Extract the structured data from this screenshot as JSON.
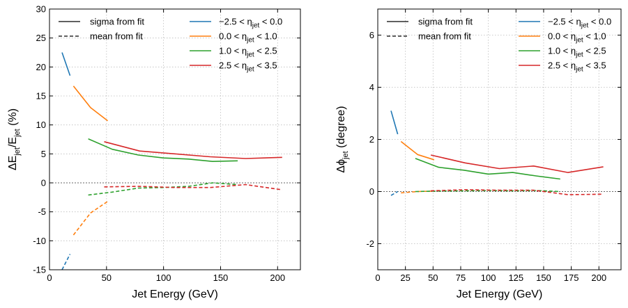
{
  "colors": {
    "eta1": "#1f77b4",
    "eta2": "#ff7f0e",
    "eta3": "#2ca02c",
    "eta4": "#d62728",
    "grid": "#bbbbbb",
    "zero_line": "#666666"
  },
  "chart_data": [
    {
      "type": "line",
      "title": "",
      "xlabel": "Jet Energy (GeV)",
      "ylabel": "ΔEjet/Ejet (%)",
      "ylabel_parts": {
        "main": "ΔE",
        "sub1": "jet",
        "mid": "/E",
        "sub2": "jet",
        "unit": " (%)"
      },
      "xlim": [
        0,
        220
      ],
      "ylim": [
        -15,
        30
      ],
      "xticks": [
        0,
        50,
        100,
        150,
        200
      ],
      "yticks": [
        -15,
        -10,
        -5,
        0,
        5,
        10,
        15,
        20,
        25,
        30
      ],
      "grid": true,
      "zero_line": true,
      "legend_styles": [
        {
          "label": "sigma from fit",
          "dash": "solid"
        },
        {
          "label": "mean from fit",
          "dash": "dashed"
        }
      ],
      "legend_location": "top-right",
      "series": [
        {
          "name": "−2.5 < ηjet < 0.0",
          "color_key": "eta1",
          "sigma": {
            "x": [
              11,
              18
            ],
            "y": [
              22.5,
              18.5
            ]
          },
          "mean": {
            "x": [
              11,
              18
            ],
            "y": [
              -15.0,
              -12.3
            ]
          }
        },
        {
          "name": "0.0 < ηjet < 1.0",
          "color_key": "eta2",
          "sigma": {
            "x": [
              21,
              36,
              51
            ],
            "y": [
              16.7,
              13.0,
              10.7
            ]
          },
          "mean": {
            "x": [
              21,
              36,
              51
            ],
            "y": [
              -9.0,
              -5.2,
              -3.2
            ]
          }
        },
        {
          "name": "1.0 < ηjet < 2.5",
          "color_key": "eta3",
          "sigma": {
            "x": [
              34,
              55,
              78,
              100,
              122,
              143,
              165
            ],
            "y": [
              7.6,
              5.8,
              4.8,
              4.3,
              4.1,
              3.7,
              3.8
            ]
          },
          "mean": {
            "x": [
              34,
              55,
              78,
              100,
              122,
              143,
              165
            ],
            "y": [
              -2.1,
              -1.6,
              -0.9,
              -0.8,
              -0.6,
              0.0,
              -0.3
            ]
          }
        },
        {
          "name": "2.5 < ηjet < 3.5",
          "color_key": "eta4",
          "sigma": {
            "x": [
              48,
              79,
              110,
              141,
              172,
              204
            ],
            "y": [
              7.1,
              5.5,
              5.0,
              4.5,
              4.2,
              4.4
            ]
          },
          "mean": {
            "x": [
              48,
              79,
              110,
              141,
              172,
              204
            ],
            "y": [
              -0.7,
              -0.6,
              -0.8,
              -0.8,
              -0.3,
              -1.2
            ]
          }
        }
      ]
    },
    {
      "type": "line",
      "title": "",
      "xlabel": "Jet Energy (GeV)",
      "ylabel": "Δϕjet (degree)",
      "ylabel_parts": {
        "main": "Δϕ",
        "sub1": "jet",
        "mid": "",
        "sub2": "",
        "unit": " (degree)"
      },
      "xlim": [
        0,
        220
      ],
      "ylim": [
        -3,
        7
      ],
      "xticks": [
        0,
        25,
        50,
        75,
        100,
        125,
        150,
        175,
        200
      ],
      "yticks": [
        -2,
        0,
        2,
        4,
        6
      ],
      "grid": true,
      "zero_line": true,
      "legend_styles": [
        {
          "label": "sigma from fit",
          "dash": "solid"
        },
        {
          "label": "mean from fit",
          "dash": "dashed"
        }
      ],
      "legend_location": "top-right",
      "series": [
        {
          "name": "−2.5 < ηjet < 0.0",
          "color_key": "eta1",
          "sigma": {
            "x": [
              12,
              18
            ],
            "y": [
              3.1,
              2.2
            ]
          },
          "mean": {
            "x": [
              12,
              18
            ],
            "y": [
              -0.15,
              0.0
            ]
          }
        },
        {
          "name": "0.0 < ηjet < 1.0",
          "color_key": "eta2",
          "sigma": {
            "x": [
              21,
              36,
              51
            ],
            "y": [
              1.92,
              1.42,
              1.22
            ]
          },
          "mean": {
            "x": [
              21,
              36,
              51
            ],
            "y": [
              -0.05,
              0.0,
              0.02
            ]
          }
        },
        {
          "name": "1.0 < ηjet < 2.5",
          "color_key": "eta3",
          "sigma": {
            "x": [
              34,
              55,
              78,
              100,
              122,
              143,
              165
            ],
            "y": [
              1.27,
              0.93,
              0.82,
              0.67,
              0.73,
              0.6,
              0.48
            ]
          },
          "mean": {
            "x": [
              34,
              55,
              78,
              100,
              122,
              143,
              165
            ],
            "y": [
              0.0,
              0.02,
              0.03,
              0.04,
              0.03,
              0.04,
              0.0
            ]
          }
        },
        {
          "name": "2.5 < ηjet < 3.5",
          "color_key": "eta4",
          "sigma": {
            "x": [
              48,
              79,
              110,
              141,
              172,
              204
            ],
            "y": [
              1.4,
              1.1,
              0.88,
              0.98,
              0.73,
              0.95
            ]
          },
          "mean": {
            "x": [
              48,
              79,
              110,
              141,
              172,
              204
            ],
            "y": [
              0.03,
              0.07,
              0.05,
              0.05,
              -0.12,
              -0.1
            ]
          }
        }
      ]
    }
  ]
}
